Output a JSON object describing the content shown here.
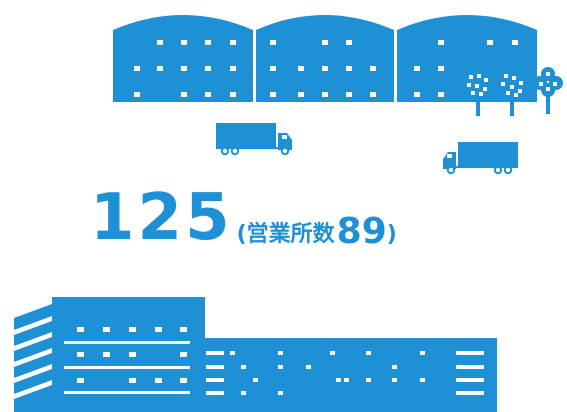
{
  "stat": {
    "main_value": "125",
    "open_paren": "(",
    "sub_label": "営業所数",
    "sub_value": "89",
    "close_paren": ")"
  },
  "colors": {
    "accent": "#1E90D6",
    "background": "#FFFFFF"
  },
  "icons": [
    "warehouse-icon",
    "truck-icon",
    "tree-icon",
    "factory-icon"
  ]
}
